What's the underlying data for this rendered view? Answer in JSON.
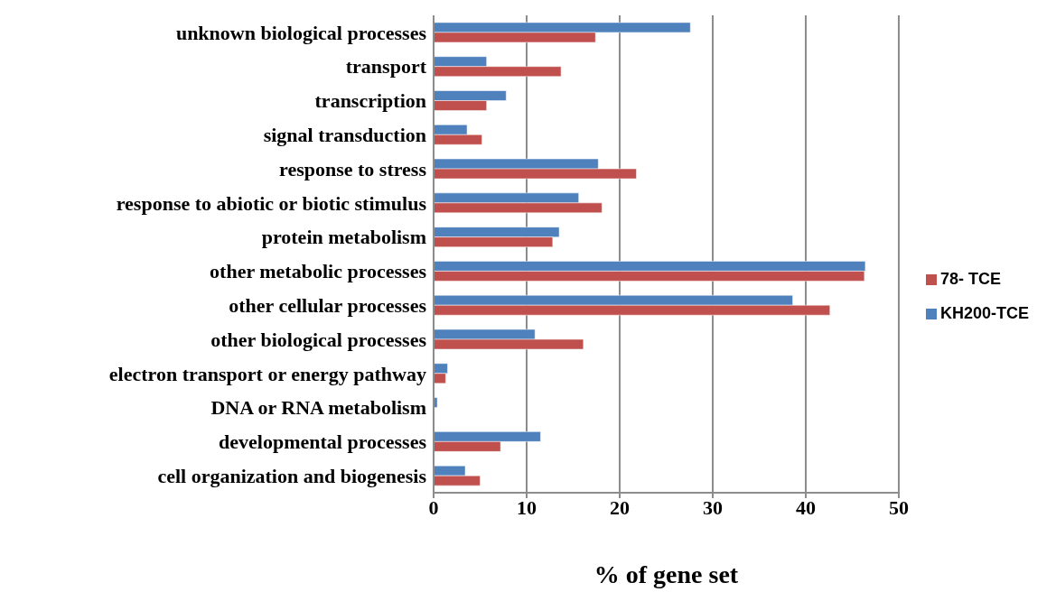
{
  "chart_data": {
    "type": "bar",
    "orientation": "horizontal",
    "xlabel": "% of gene set",
    "categories": [
      "unknown biological processes",
      "transport",
      "transcription",
      "signal transduction",
      "response to stress",
      "response to abiotic or biotic stimulus",
      "protein metabolism",
      "other metabolic processes",
      "other cellular processes",
      "other biological processes",
      "electron transport or energy pathway",
      "DNA or RNA metabolism",
      "developmental processes",
      "cell organization and biogenesis"
    ],
    "series": [
      {
        "name": "KH200-TCE",
        "color": "#4f81bd",
        "values": [
          27.6,
          5.7,
          7.8,
          3.6,
          17.7,
          15.6,
          13.5,
          46.4,
          38.6,
          10.9,
          1.5,
          0.4,
          11.5,
          3.4
        ]
      },
      {
        "name": "78- TCE",
        "color": "#c0504d",
        "values": [
          17.4,
          13.7,
          5.7,
          5.2,
          21.8,
          18.1,
          12.8,
          46.3,
          42.6,
          16.1,
          1.3,
          0,
          7.2,
          5.0
        ]
      }
    ],
    "xlim": [
      0,
      50
    ],
    "xticks": [
      0,
      10,
      20,
      30,
      40,
      50
    ],
    "grid": "x",
    "legend": "right"
  }
}
